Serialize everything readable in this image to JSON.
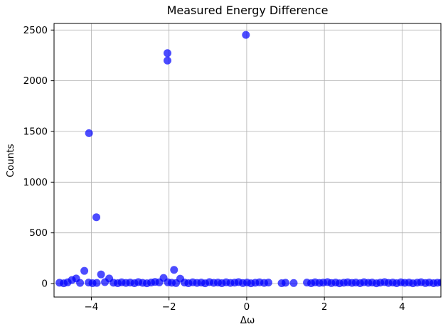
{
  "figure": {
    "title": "Measured Energy Difference",
    "xlabel": "Δω",
    "ylabel": "Counts"
  },
  "chart_data": {
    "type": "scatter",
    "title": "Measured Energy Difference",
    "xlabel": "Δω",
    "ylabel": "Counts",
    "xlim": [
      -4.96,
      5.0
    ],
    "ylim": [
      -133,
      2565
    ],
    "xticks": [
      -4,
      -2,
      0,
      2,
      4
    ],
    "xtick_labels": [
      "−4",
      "−2",
      "0",
      "2",
      "4"
    ],
    "yticks": [
      0,
      500,
      1000,
      1500,
      2000,
      2500
    ],
    "ytick_labels": [
      "0",
      "500",
      "1000",
      "1500",
      "2000",
      "2500"
    ],
    "grid": true,
    "legend": "none",
    "grid_color": "#b0b0b0",
    "axis_color": "#000000",
    "marker": {
      "shape": "circle",
      "color": "#0000ff",
      "opacity": 0.7,
      "radius_px": 5.5
    },
    "points": [
      [
        -4.82,
        8
      ],
      [
        -4.71,
        3
      ],
      [
        -4.61,
        12
      ],
      [
        -4.5,
        35
      ],
      [
        -4.39,
        50
      ],
      [
        -4.29,
        6
      ],
      [
        -4.18,
        125
      ],
      [
        -4.07,
        10
      ],
      [
        -3.97,
        4
      ],
      [
        -3.86,
        6
      ],
      [
        -3.75,
        90
      ],
      [
        -3.65,
        14
      ],
      [
        -3.54,
        50
      ],
      [
        -3.43,
        8
      ],
      [
        -3.32,
        4
      ],
      [
        -3.22,
        12
      ],
      [
        -3.11,
        6
      ],
      [
        -3.0,
        10
      ],
      [
        -2.89,
        4
      ],
      [
        -2.79,
        14
      ],
      [
        -2.68,
        7
      ],
      [
        -2.57,
        3
      ],
      [
        -2.46,
        10
      ],
      [
        -2.36,
        16
      ],
      [
        -2.25,
        12
      ],
      [
        -2.14,
        55
      ],
      [
        -2.03,
        12
      ],
      [
        -1.93,
        8
      ],
      [
        -1.82,
        5
      ],
      [
        -1.71,
        48
      ],
      [
        -1.6,
        10
      ],
      [
        -1.5,
        4
      ],
      [
        -1.39,
        12
      ],
      [
        -1.28,
        6
      ],
      [
        -1.17,
        10
      ],
      [
        -1.07,
        3
      ],
      [
        -0.96,
        14
      ],
      [
        -0.85,
        7
      ],
      [
        -0.74,
        10
      ],
      [
        -0.64,
        4
      ],
      [
        -0.53,
        12
      ],
      [
        -0.42,
        6
      ],
      [
        -0.31,
        9
      ],
      [
        -0.21,
        14
      ],
      [
        -0.1,
        5
      ],
      [
        0.01,
        10
      ],
      [
        0.11,
        3
      ],
      [
        0.22,
        8
      ],
      [
        0.33,
        12
      ],
      [
        0.45,
        6
      ],
      [
        0.56,
        10
      ],
      [
        0.9,
        4
      ],
      [
        1.0,
        8
      ],
      [
        1.21,
        5
      ],
      [
        1.55,
        10
      ],
      [
        1.66,
        4
      ],
      [
        1.76,
        12
      ],
      [
        1.87,
        6
      ],
      [
        1.97,
        9
      ],
      [
        2.08,
        14
      ],
      [
        2.18,
        5
      ],
      [
        2.29,
        10
      ],
      [
        2.39,
        3
      ],
      [
        2.5,
        8
      ],
      [
        2.6,
        12
      ],
      [
        2.71,
        6
      ],
      [
        2.81,
        10
      ],
      [
        2.92,
        4
      ],
      [
        3.02,
        13
      ],
      [
        3.13,
        7
      ],
      [
        3.23,
        10
      ],
      [
        3.34,
        3
      ],
      [
        3.44,
        9
      ],
      [
        3.55,
        14
      ],
      [
        3.65,
        6
      ],
      [
        3.76,
        10
      ],
      [
        3.86,
        4
      ],
      [
        3.97,
        12
      ],
      [
        4.07,
        7
      ],
      [
        4.18,
        10
      ],
      [
        4.28,
        3
      ],
      [
        4.39,
        9
      ],
      [
        4.49,
        13
      ],
      [
        4.6,
        5
      ],
      [
        4.7,
        10
      ],
      [
        4.81,
        4
      ],
      [
        4.91,
        8
      ],
      [
        5.01,
        10
      ],
      [
        -4.06,
        1483
      ],
      [
        -3.87,
        654
      ],
      [
        -2.04,
        2272
      ],
      [
        -2.04,
        2199
      ],
      [
        -1.87,
        135
      ],
      [
        -0.02,
        2452
      ]
    ]
  }
}
